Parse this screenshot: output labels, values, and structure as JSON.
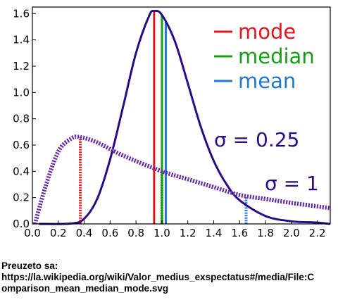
{
  "chart_data": {
    "type": "line",
    "title": "",
    "xlabel": "",
    "ylabel": "",
    "xlim": [
      0.0,
      2.3
    ],
    "ylim": [
      0.0,
      1.65
    ],
    "x_ticks": [
      "0.0",
      "0.2",
      "0.4",
      "0.6",
      "0.8",
      "1.0",
      "1.2",
      "1.4",
      "1.6",
      "1.8",
      "2.0",
      "2.2"
    ],
    "x_tick_values": [
      0.0,
      0.2,
      0.4,
      0.6,
      0.8,
      1.0,
      1.2,
      1.4,
      1.6,
      1.8,
      2.0,
      2.2
    ],
    "y_ticks": [
      "0.0",
      "0.2",
      "0.4",
      "0.6",
      "0.8",
      "1.0",
      "1.2",
      "1.4",
      "1.6"
    ],
    "y_tick_values": [
      0.0,
      0.2,
      0.4,
      0.6,
      0.8,
      1.0,
      1.2,
      1.4,
      1.6
    ],
    "grid": false,
    "legend": {
      "placement": "top-right",
      "entries": [
        {
          "label": "mode",
          "color": "#e8141c"
        },
        {
          "label": "median",
          "color": "#15a015"
        },
        {
          "label": "mean",
          "color": "#1e78d8"
        }
      ]
    },
    "series": [
      {
        "name": "σ = 0.25",
        "style": "solid",
        "color": "#2a0a8a",
        "x": [
          0.05,
          0.3,
          0.4,
          0.5,
          0.6,
          0.7,
          0.8,
          0.9,
          0.94,
          1.0,
          1.1,
          1.2,
          1.3,
          1.4,
          1.5,
          1.6,
          1.8,
          2.0,
          2.2,
          2.3
        ],
        "y": [
          0.0,
          0.003,
          0.04,
          0.19,
          0.49,
          0.89,
          1.3,
          1.58,
          1.62,
          1.59,
          1.39,
          1.07,
          0.74,
          0.48,
          0.3,
          0.18,
          0.06,
          0.02,
          0.01,
          0.0
        ]
      },
      {
        "name": "σ = 1",
        "style": "dotted",
        "color": "#6b2db0",
        "x": [
          0.02,
          0.1,
          0.2,
          0.3,
          0.37,
          0.5,
          0.7,
          1.0,
          1.2,
          1.4,
          1.6,
          1.8,
          2.0,
          2.3
        ],
        "y": [
          0.0,
          0.28,
          0.55,
          0.65,
          0.66,
          0.62,
          0.52,
          0.4,
          0.34,
          0.28,
          0.22,
          0.19,
          0.16,
          0.12
        ]
      }
    ],
    "markers": [
      {
        "series": "σ = 0.25",
        "kind": "mode",
        "x": 0.94,
        "y": 1.62,
        "color": "#e8141c",
        "style": "solid"
      },
      {
        "series": "σ = 0.25",
        "kind": "median",
        "x": 1.0,
        "y": 1.59,
        "color": "#15a015",
        "style": "solid"
      },
      {
        "series": "σ = 0.25",
        "kind": "mean",
        "x": 1.03,
        "y": 1.54,
        "color": "#1e78d8",
        "style": "solid"
      },
      {
        "series": "σ = 1",
        "kind": "mode",
        "x": 0.37,
        "y": 0.66,
        "color": "#e8141c",
        "style": "dotted"
      },
      {
        "series": "σ = 1",
        "kind": "median",
        "x": 1.0,
        "y": 0.4,
        "color": "#15a015",
        "style": "dotted"
      },
      {
        "series": "σ = 1",
        "kind": "mean",
        "x": 1.65,
        "y": 0.21,
        "color": "#1e78d8",
        "style": "dotted"
      }
    ],
    "annotations": [
      {
        "text": "σ = 0.25",
        "color": "#2a0a8a"
      },
      {
        "text": "σ = 1",
        "color": "#2a0a8a"
      }
    ]
  },
  "caption": {
    "line1": "Preuzeto sa:",
    "line2": "https://la.wikipedia.org/wiki/Valor_medius_exspectatus#/media/File:C",
    "line3": "omparison_mean_median_mode.svg"
  }
}
